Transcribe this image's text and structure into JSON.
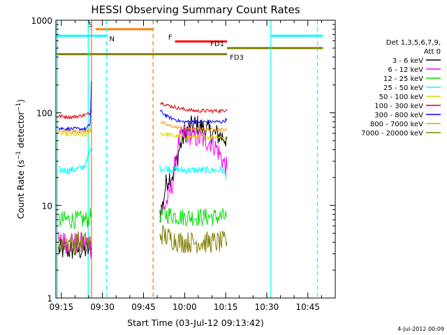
{
  "chart_data": {
    "type": "line",
    "title": "HESSI Observing Summary Count Rates",
    "xlabel": "Start Time (03-Jul-12 09:13:42)",
    "ylabel_main": "Count Rate (s",
    "ylabel_sup": "−1",
    "ylabel_mid": " detector",
    "ylabel_end": ")",
    "x_range_min": [
      -1,
      101
    ],
    "ylim": [
      1,
      1000
    ],
    "yscale": "log",
    "x_ticks": [
      {
        "t": 1,
        "label": "09:15"
      },
      {
        "t": 16,
        "label": "09:30"
      },
      {
        "t": 31,
        "label": "09:45"
      },
      {
        "t": 46,
        "label": "10:00"
      },
      {
        "t": 61,
        "label": "10:15"
      },
      {
        "t": 76,
        "label": "10:30"
      },
      {
        "t": 91,
        "label": "10:45"
      }
    ],
    "y_ticks": [
      {
        "v": 1,
        "label": "1"
      },
      {
        "v": 10,
        "label": "10"
      },
      {
        "v": 100,
        "label": "100"
      },
      {
        "v": 1000,
        "label": "1000"
      }
    ],
    "legend": {
      "header1": "Det 1,3,5,6,7,9,",
      "header2": "Att 0",
      "placement": "right",
      "entries": [
        {
          "label": "3 - 6 keV",
          "color": "#000000"
        },
        {
          "label": "6 - 12 keV",
          "color": "#ff00ff"
        },
        {
          "label": "12 - 25 keV",
          "color": "#00e000"
        },
        {
          "label": "25 - 50 keV",
          "color": "#00ffff"
        },
        {
          "label": "50 - 100 keV",
          "color": "#d8d800"
        },
        {
          "label": "100 - 300 keV",
          "color": "#e00000"
        },
        {
          "label": "300 - 800 keV",
          "color": "#0000ff"
        },
        {
          "label": "800 - 7000 keV",
          "color": "#ff9900"
        },
        {
          "label": "7000 - 20000 keV",
          "color": "#808000"
        }
      ]
    },
    "series": [
      {
        "name": "3 - 6 keV",
        "color": "#000000",
        "segments": [
          [
            [
              0,
              3.3
            ],
            [
              5,
              3.3
            ],
            [
              10,
              3.3
            ],
            [
              11.5,
              3.3
            ],
            [
              12,
              3.5
            ]
          ],
          [
            [
              37,
              8.5
            ],
            [
              38,
              10
            ],
            [
              39,
              16
            ],
            [
              40,
              20
            ],
            [
              42,
              22
            ],
            [
              44,
              40
            ],
            [
              46,
              60
            ],
            [
              48,
              70
            ],
            [
              50,
              75
            ],
            [
              52,
              70
            ],
            [
              54,
              65
            ],
            [
              56,
              60
            ],
            [
              58,
              58
            ],
            [
              60,
              55
            ],
            [
              61.5,
              53
            ]
          ]
        ]
      },
      {
        "name": "6 - 12 keV",
        "color": "#ff00ff",
        "segments": [
          [
            [
              0,
              4
            ],
            [
              5,
              4
            ],
            [
              10,
              4
            ],
            [
              11.5,
              4
            ],
            [
              12,
              3
            ]
          ],
          [
            [
              37,
              8
            ],
            [
              38,
              9
            ],
            [
              39,
              10
            ],
            [
              40,
              12
            ],
            [
              41,
              15
            ],
            [
              42,
              20
            ],
            [
              43,
              35
            ],
            [
              44,
              50
            ],
            [
              46,
              60
            ],
            [
              48,
              58
            ],
            [
              50,
              55
            ],
            [
              52,
              52
            ],
            [
              54,
              50
            ],
            [
              56,
              48
            ],
            [
              58,
              40
            ],
            [
              60,
              30
            ],
            [
              61.5,
              25
            ]
          ]
        ]
      },
      {
        "name": "12 - 25 keV",
        "color": "#00e000",
        "segments": [
          [
            [
              0,
              7
            ],
            [
              5,
              7
            ],
            [
              10,
              7
            ],
            [
              11.5,
              7.5
            ],
            [
              12,
              8
            ]
          ],
          [
            [
              37,
              8
            ],
            [
              40,
              8
            ],
            [
              45,
              7.5
            ],
            [
              50,
              7.5
            ],
            [
              55,
              7.5
            ],
            [
              60,
              7.5
            ],
            [
              61.5,
              7.5
            ]
          ]
        ]
      },
      {
        "name": "25 - 50 keV",
        "color": "#00ffff",
        "segments": [
          [
            [
              0,
              24
            ],
            [
              4,
              24
            ],
            [
              8,
              25
            ],
            [
              10,
              28
            ],
            [
              11,
              35
            ],
            [
              12,
              45
            ]
          ],
          [
            [
              37,
              25
            ],
            [
              40,
              25
            ],
            [
              45,
              24
            ],
            [
              50,
              24
            ],
            [
              55,
              24
            ],
            [
              60,
              24
            ],
            [
              61.5,
              20
            ]
          ]
        ]
      },
      {
        "name": "50 - 100 keV",
        "color": "#d8d800",
        "segments": [
          [
            [
              0,
              60
            ],
            [
              5,
              58
            ],
            [
              10,
              58
            ],
            [
              11.5,
              62
            ],
            [
              12,
              70
            ]
          ],
          [
            [
              37,
              60
            ],
            [
              40,
              58
            ],
            [
              45,
              55
            ],
            [
              50,
              55
            ],
            [
              55,
              55
            ],
            [
              60,
              55
            ],
            [
              61.5,
              50
            ]
          ]
        ]
      },
      {
        "name": "100 - 300 keV",
        "color": "#e00000",
        "segments": [
          [
            [
              0,
              92
            ],
            [
              5,
              90
            ],
            [
              10,
              95
            ],
            [
              11.5,
              100
            ],
            [
              12,
              110
            ]
          ],
          [
            [
              37,
              130
            ],
            [
              40,
              120
            ],
            [
              45,
              110
            ],
            [
              50,
              105
            ],
            [
              55,
              105
            ],
            [
              60,
              105
            ],
            [
              61.5,
              110
            ]
          ]
        ]
      },
      {
        "name": "300 - 800 keV",
        "color": "#0000ff",
        "segments": [
          [
            [
              0,
              68
            ],
            [
              5,
              67
            ],
            [
              10,
              67
            ],
            [
              11.5,
              75
            ],
            [
              12,
              220
            ]
          ],
          [
            [
              37,
              105
            ],
            [
              40,
              90
            ],
            [
              45,
              80
            ],
            [
              50,
              80
            ],
            [
              55,
              80
            ],
            [
              60,
              80
            ],
            [
              61.5,
              85
            ]
          ]
        ]
      },
      {
        "name": "800 - 7000 keV",
        "color": "#ff9900",
        "segments": [
          [
            [
              0,
              64
            ],
            [
              5,
              63
            ],
            [
              10,
              63
            ],
            [
              11.5,
              65
            ],
            [
              12,
              75
            ]
          ],
          [
            [
              37,
              80
            ],
            [
              40,
              73
            ],
            [
              45,
              68
            ],
            [
              50,
              67
            ],
            [
              55,
              66
            ],
            [
              60,
              66
            ],
            [
              61.5,
              65
            ]
          ]
        ]
      },
      {
        "name": "7000 - 20000 keV",
        "color": "#808000",
        "segments": [
          [
            [
              0,
              4
            ],
            [
              5,
              4
            ],
            [
              10,
              4
            ],
            [
              11.5,
              4
            ],
            [
              12,
              3
            ]
          ],
          [
            [
              37,
              5
            ],
            [
              40,
              4.5
            ],
            [
              45,
              4
            ],
            [
              50,
              4
            ],
            [
              55,
              4
            ],
            [
              60,
              4
            ],
            [
              61.5,
              4
            ]
          ]
        ]
      }
    ],
    "flag_bars": [
      {
        "label": "S",
        "color": "#ff8000",
        "y": 800,
        "t0": 13.5,
        "t1": 34.5,
        "label_side": "left"
      },
      {
        "label": "N",
        "color": "#00ffff",
        "y": 680,
        "t0": -1,
        "t1": 17.5,
        "label_side": "right"
      },
      {
        "label": "N",
        "color": "#00ffff",
        "y": 680,
        "t0": 77.5,
        "t1": 96.5,
        "label_side": "none"
      },
      {
        "label": "F",
        "color": "#ff0000",
        "y": 590,
        "t0": 42.5,
        "t1": 61.5,
        "label_side": "left"
      },
      {
        "label": "FD1",
        "color": "#808000",
        "y": 500,
        "t0": 61.5,
        "t1": 96.5,
        "label_side": "left"
      },
      {
        "label": "FD3",
        "color": "#808000",
        "y": 430,
        "t0": -1,
        "t1": 61.5,
        "label_side": "right"
      }
    ],
    "vlines": [
      {
        "t": -0.5,
        "color": "#00ffff",
        "dash": false
      },
      {
        "t": 10.8,
        "color": "#00ffff",
        "dash": false
      },
      {
        "t": 12,
        "color": "#ff8000",
        "dash": false
      },
      {
        "t": 17.5,
        "color": "#00ffff",
        "dash": true
      },
      {
        "t": 34.5,
        "color": "#ff8000",
        "dash": true
      },
      {
        "t": 77.5,
        "color": "#00ffff",
        "dash": false
      },
      {
        "t": 94.5,
        "color": "#00ffff",
        "dash": true
      }
    ]
  },
  "footer": {
    "date_stamp": "4-Jul-2012 00:09"
  }
}
